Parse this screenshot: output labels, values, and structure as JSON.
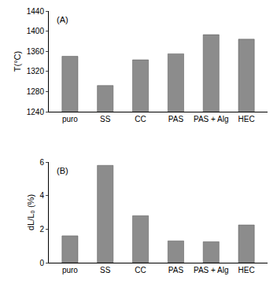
{
  "chart_data": [
    {
      "type": "bar",
      "annotations": [
        "(A)"
      ],
      "y_label": "T(°C)",
      "categories": [
        "puro",
        "SS",
        "CC",
        "PAS",
        "PAS + Alg",
        "HEC"
      ],
      "values": [
        1350,
        1292,
        1343,
        1355,
        1393,
        1384
      ],
      "color": "#8c8c8c",
      "ylim": [
        1240,
        1440
      ],
      "yticks": [
        1240,
        1280,
        1320,
        1360,
        1400,
        1440
      ],
      "grid": false
    },
    {
      "type": "bar",
      "annotations": [
        "(B)"
      ],
      "y_label": "dL/L₀ (%)",
      "categories": [
        "puro",
        "SS",
        "CC",
        "PAS",
        "PAS + Alg",
        "HEC"
      ],
      "values": [
        1.6,
        5.8,
        2.8,
        1.3,
        1.25,
        2.25
      ],
      "color": "#8c8c8c",
      "ylim": [
        0,
        6
      ],
      "yticks": [
        0,
        2,
        4,
        6
      ],
      "grid": false
    }
  ]
}
